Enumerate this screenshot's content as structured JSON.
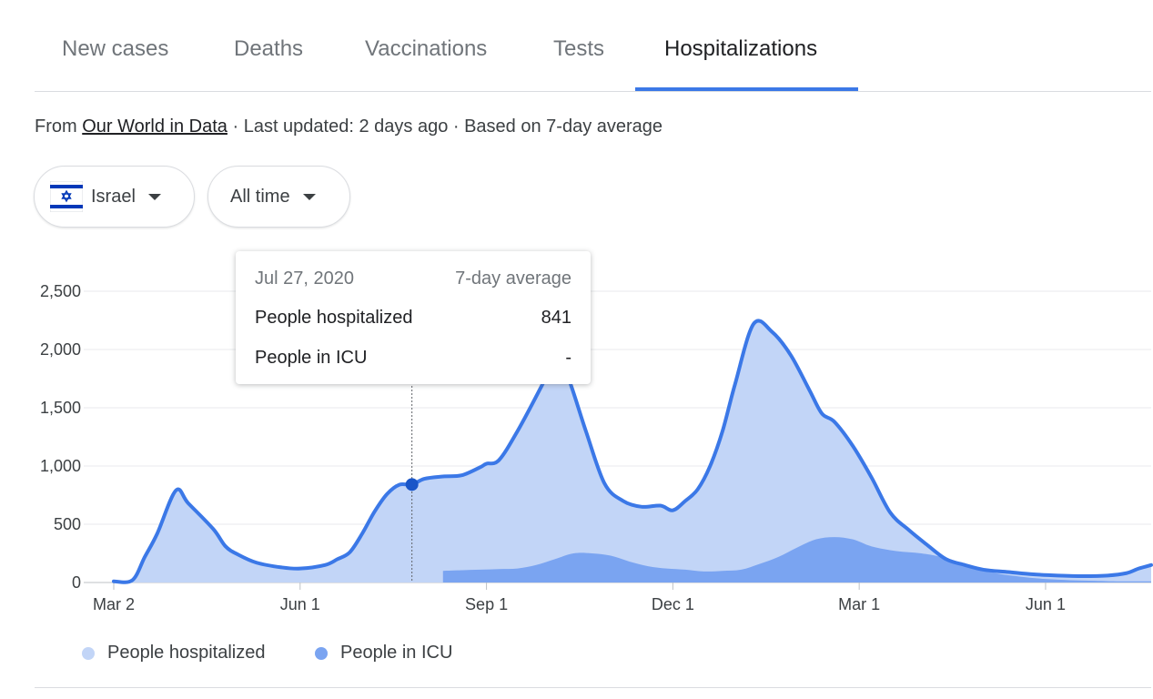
{
  "tabs": [
    {
      "label": "New cases",
      "active": false
    },
    {
      "label": "Deaths",
      "active": false
    },
    {
      "label": "Vaccinations",
      "active": false
    },
    {
      "label": "Tests",
      "active": false
    },
    {
      "label": "Hospitalizations",
      "active": true
    }
  ],
  "source": {
    "prefix": "From",
    "link": "Our World in Data",
    "meta": "· Last updated: 2 days ago · Based on 7-day average"
  },
  "filters": {
    "country": "Israel",
    "range": "All time"
  },
  "colors": {
    "accent": "#3b78e7",
    "hospitalized_fill": "#c2d5f7",
    "hospitalized_line": "#3b78e7",
    "icu_fill": "#7aa4f1",
    "flag_blue": "#0038b8"
  },
  "tooltip": {
    "date": "Jul 27, 2020",
    "note": "7-day average",
    "rows": [
      {
        "label": "People hospitalized",
        "value": "841"
      },
      {
        "label": "People in ICU",
        "value": "-"
      }
    ]
  },
  "legend": [
    {
      "label": "People hospitalized",
      "color": "#c2d5f7"
    },
    {
      "label": "People in ICU",
      "color": "#7aa4f1"
    }
  ],
  "chart_data": {
    "type": "area",
    "ylim": [
      0,
      2500
    ],
    "y_ticks": [
      0,
      500,
      1000,
      1500,
      2000,
      2500
    ],
    "y_tick_labels": [
      "0",
      "500",
      "1,000",
      "1,500",
      "2,000",
      "2,500"
    ],
    "x_tick_labels": [
      "Mar 2",
      "Jun 1",
      "Sep 1",
      "Dec 1",
      "Mar 1",
      "Jun 1"
    ],
    "x_tick_months": [
      0,
      3,
      6,
      9,
      12,
      15
    ],
    "x_month_range": [
      0,
      16.7
    ],
    "highlight": {
      "month": 4.8,
      "value": 841
    },
    "series": [
      {
        "name": "People hospitalized",
        "x": [
          0,
          0.3,
          0.5,
          0.7,
          1.0,
          1.2,
          1.6,
          1.8,
          2.0,
          2.3,
          2.7,
          3.0,
          3.4,
          3.6,
          3.8,
          4.0,
          4.2,
          4.4,
          4.6,
          4.8,
          5.0,
          5.3,
          5.6,
          5.9,
          6.0,
          6.2,
          6.5,
          6.9,
          7.1,
          7.3,
          7.6,
          7.9,
          8.2,
          8.5,
          8.8,
          9.0,
          9.2,
          9.4,
          9.6,
          9.8,
          10.0,
          10.3,
          10.6,
          10.9,
          11.2,
          11.4,
          11.6,
          11.9,
          12.2,
          12.5,
          12.8,
          13.1,
          13.4,
          13.7,
          14.0,
          14.4,
          14.8,
          15.2,
          15.6,
          16.0,
          16.3,
          16.5,
          16.7
        ],
        "values": [
          10,
          20,
          220,
          420,
          790,
          680,
          460,
          310,
          240,
          170,
          130,
          120,
          150,
          200,
          260,
          420,
          610,
          760,
          840,
          841,
          890,
          910,
          920,
          990,
          1020,
          1050,
          1300,
          1700,
          1920,
          1780,
          1300,
          850,
          700,
          650,
          660,
          620,
          700,
          800,
          1000,
          1300,
          1700,
          2220,
          2150,
          1950,
          1650,
          1450,
          1380,
          1170,
          900,
          600,
          450,
          320,
          200,
          150,
          110,
          90,
          70,
          60,
          55,
          60,
          80,
          120,
          150
        ]
      },
      {
        "name": "People in ICU",
        "x": [
          5.3,
          5.6,
          5.9,
          6.2,
          6.5,
          6.8,
          7.1,
          7.4,
          7.7,
          8.0,
          8.3,
          8.6,
          8.9,
          9.2,
          9.5,
          9.8,
          10.1,
          10.4,
          10.7,
          11.0,
          11.3,
          11.6,
          11.9,
          12.2,
          12.6,
          13.0,
          13.4,
          13.8,
          14.2,
          14.6,
          15.0,
          15.4,
          15.8,
          16.2,
          16.7
        ],
        "values": [
          100,
          105,
          110,
          115,
          120,
          150,
          200,
          250,
          250,
          230,
          180,
          140,
          120,
          110,
          95,
          100,
          110,
          160,
          220,
          300,
          370,
          390,
          370,
          310,
          270,
          250,
          210,
          140,
          80,
          50,
          30,
          20,
          15,
          10,
          10
        ]
      }
    ]
  }
}
